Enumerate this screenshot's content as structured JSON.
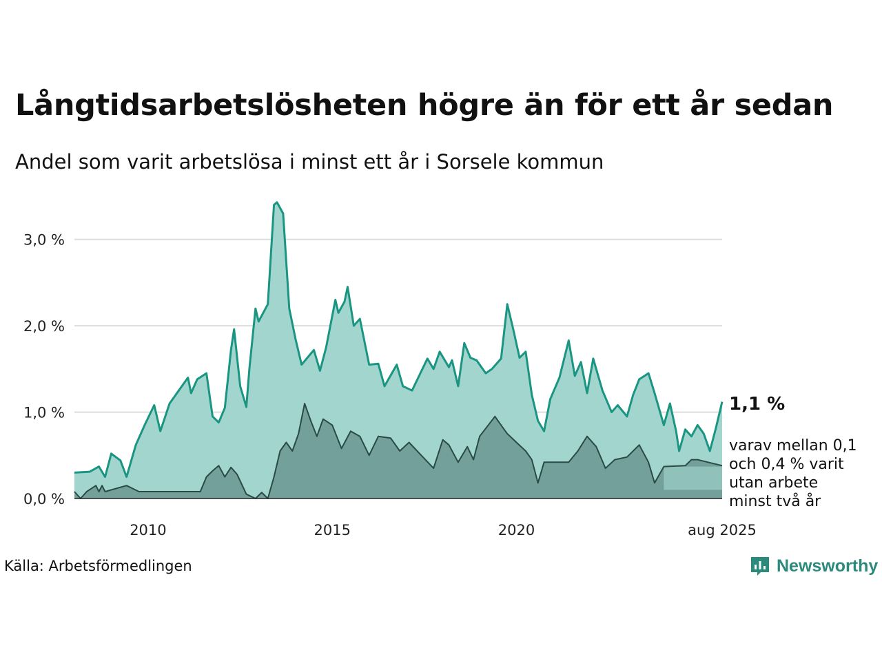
{
  "title": "Långtidsarbetslösheten högre än för ett år sedan",
  "subtitle": "Andel som varit arbetslösa i minst ett år i Sorsele kommun",
  "source": "Källa: Arbetsförmedlingen",
  "brand": "Newsworthy",
  "colors": {
    "primary_line": "#199582",
    "primary_fill": "#a3d5cf",
    "secondary_line": "#2a4a46",
    "secondary_fill": "#73a09a",
    "band_fill": "#95c7c0",
    "grid": "#dddddd",
    "brand": "#2c8a7c"
  },
  "annotation": {
    "value": "1,1 %",
    "sub_lines": [
      "varav mellan 0,1",
      "och 0,4 % varit",
      "utan arbete",
      "minst två år"
    ]
  },
  "chart_data": {
    "type": "area",
    "x_unit": "month",
    "x_start": "2008-01",
    "x_end": "2025-08",
    "ylim": [
      0,
      3.5
    ],
    "y_ticks": [
      {
        "value": 0,
        "label": "0,0 %"
      },
      {
        "value": 1,
        "label": "1,0 %"
      },
      {
        "value": 2,
        "label": "2,0 %"
      },
      {
        "value": 3,
        "label": "3,0 %"
      }
    ],
    "x_ticks": [
      {
        "date": "2010-01",
        "label": "2010"
      },
      {
        "date": "2015-01",
        "label": "2015"
      },
      {
        "date": "2020-01",
        "label": "2020"
      },
      {
        "date": "2025-08",
        "label": "aug 2025"
      }
    ],
    "grid": true,
    "series": [
      {
        "role": "total",
        "points": [
          [
            "2008-01",
            0.3
          ],
          [
            "2008-06",
            0.31
          ],
          [
            "2008-09",
            0.37
          ],
          [
            "2008-11",
            0.25
          ],
          [
            "2009-01",
            0.52
          ],
          [
            "2009-04",
            0.44
          ],
          [
            "2009-06",
            0.25
          ],
          [
            "2009-09",
            0.62
          ],
          [
            "2009-12",
            0.86
          ],
          [
            "2010-03",
            1.08
          ],
          [
            "2010-05",
            0.78
          ],
          [
            "2010-08",
            1.1
          ],
          [
            "2010-12",
            1.3
          ],
          [
            "2011-02",
            1.4
          ],
          [
            "2011-03",
            1.22
          ],
          [
            "2011-05",
            1.38
          ],
          [
            "2011-08",
            1.45
          ],
          [
            "2011-10",
            0.95
          ],
          [
            "2011-12",
            0.88
          ],
          [
            "2012-02",
            1.05
          ],
          [
            "2012-04",
            1.72
          ],
          [
            "2012-05",
            1.96
          ],
          [
            "2012-07",
            1.3
          ],
          [
            "2012-09",
            1.06
          ],
          [
            "2012-10",
            1.5
          ],
          [
            "2012-12",
            2.2
          ],
          [
            "2013-01",
            2.05
          ],
          [
            "2013-04",
            2.25
          ],
          [
            "2013-06",
            3.4
          ],
          [
            "2013-07",
            3.43
          ],
          [
            "2013-09",
            3.3
          ],
          [
            "2013-11",
            2.2
          ],
          [
            "2014-01",
            1.85
          ],
          [
            "2014-03",
            1.55
          ],
          [
            "2014-07",
            1.72
          ],
          [
            "2014-09",
            1.48
          ],
          [
            "2014-11",
            1.75
          ],
          [
            "2015-02",
            2.3
          ],
          [
            "2015-03",
            2.15
          ],
          [
            "2015-05",
            2.28
          ],
          [
            "2015-06",
            2.45
          ],
          [
            "2015-08",
            2.0
          ],
          [
            "2015-10",
            2.08
          ],
          [
            "2016-01",
            1.55
          ],
          [
            "2016-04",
            1.56
          ],
          [
            "2016-06",
            1.3
          ],
          [
            "2016-10",
            1.55
          ],
          [
            "2016-12",
            1.3
          ],
          [
            "2017-03",
            1.25
          ],
          [
            "2017-05",
            1.4
          ],
          [
            "2017-08",
            1.62
          ],
          [
            "2017-10",
            1.5
          ],
          [
            "2017-12",
            1.7
          ],
          [
            "2018-03",
            1.52
          ],
          [
            "2018-04",
            1.6
          ],
          [
            "2018-06",
            1.3
          ],
          [
            "2018-08",
            1.8
          ],
          [
            "2018-10",
            1.63
          ],
          [
            "2018-12",
            1.6
          ],
          [
            "2019-03",
            1.45
          ],
          [
            "2019-05",
            1.5
          ],
          [
            "2019-08",
            1.62
          ],
          [
            "2019-10",
            2.25
          ],
          [
            "2019-12",
            1.95
          ],
          [
            "2020-02",
            1.63
          ],
          [
            "2020-04",
            1.7
          ],
          [
            "2020-06",
            1.2
          ],
          [
            "2020-08",
            0.9
          ],
          [
            "2020-10",
            0.78
          ],
          [
            "2020-12",
            1.15
          ],
          [
            "2021-03",
            1.4
          ],
          [
            "2021-06",
            1.83
          ],
          [
            "2021-08",
            1.42
          ],
          [
            "2021-10",
            1.58
          ],
          [
            "2021-12",
            1.22
          ],
          [
            "2022-02",
            1.62
          ],
          [
            "2022-05",
            1.25
          ],
          [
            "2022-08",
            1.0
          ],
          [
            "2022-10",
            1.08
          ],
          [
            "2023-01",
            0.95
          ],
          [
            "2023-03",
            1.2
          ],
          [
            "2023-05",
            1.38
          ],
          [
            "2023-08",
            1.45
          ],
          [
            "2023-10",
            1.22
          ],
          [
            "2024-01",
            0.85
          ],
          [
            "2024-03",
            1.1
          ],
          [
            "2024-05",
            0.78
          ],
          [
            "2024-06",
            0.55
          ],
          [
            "2024-08",
            0.8
          ],
          [
            "2024-10",
            0.72
          ],
          [
            "2024-12",
            0.85
          ],
          [
            "2025-02",
            0.75
          ],
          [
            "2025-04",
            0.55
          ],
          [
            "2025-06",
            0.82
          ],
          [
            "2025-08",
            1.12
          ]
        ]
      },
      {
        "role": "minst_tva_ar",
        "points": [
          [
            "2008-01",
            0.08
          ],
          [
            "2008-03",
            0.0
          ],
          [
            "2008-05",
            0.08
          ],
          [
            "2008-08",
            0.15
          ],
          [
            "2008-09",
            0.08
          ],
          [
            "2008-10",
            0.15
          ],
          [
            "2008-11",
            0.08
          ],
          [
            "2009-06",
            0.15
          ],
          [
            "2009-10",
            0.08
          ],
          [
            "2011-06",
            0.08
          ],
          [
            "2011-08",
            0.25
          ],
          [
            "2011-10",
            0.32
          ],
          [
            "2011-12",
            0.38
          ],
          [
            "2012-02",
            0.25
          ],
          [
            "2012-04",
            0.36
          ],
          [
            "2012-06",
            0.28
          ],
          [
            "2012-09",
            0.05
          ],
          [
            "2012-12",
            0.0
          ],
          [
            "2013-02",
            0.07
          ],
          [
            "2013-04",
            0.0
          ],
          [
            "2013-06",
            0.25
          ],
          [
            "2013-08",
            0.55
          ],
          [
            "2013-10",
            0.65
          ],
          [
            "2013-12",
            0.55
          ],
          [
            "2014-02",
            0.75
          ],
          [
            "2014-04",
            1.1
          ],
          [
            "2014-06",
            0.9
          ],
          [
            "2014-08",
            0.72
          ],
          [
            "2014-10",
            0.92
          ],
          [
            "2015-01",
            0.85
          ],
          [
            "2015-04",
            0.58
          ],
          [
            "2015-07",
            0.78
          ],
          [
            "2015-10",
            0.72
          ],
          [
            "2016-01",
            0.5
          ],
          [
            "2016-04",
            0.72
          ],
          [
            "2016-08",
            0.7
          ],
          [
            "2016-11",
            0.55
          ],
          [
            "2017-02",
            0.65
          ],
          [
            "2017-06",
            0.5
          ],
          [
            "2017-10",
            0.35
          ],
          [
            "2018-01",
            0.68
          ],
          [
            "2018-03",
            0.62
          ],
          [
            "2018-06",
            0.42
          ],
          [
            "2018-09",
            0.6
          ],
          [
            "2018-11",
            0.45
          ],
          [
            "2019-01",
            0.72
          ],
          [
            "2019-06",
            0.95
          ],
          [
            "2019-08",
            0.85
          ],
          [
            "2019-10",
            0.75
          ],
          [
            "2020-01",
            0.65
          ],
          [
            "2020-04",
            0.55
          ],
          [
            "2020-06",
            0.45
          ],
          [
            "2020-08",
            0.18
          ],
          [
            "2020-10",
            0.42
          ],
          [
            "2021-06",
            0.42
          ],
          [
            "2021-09",
            0.55
          ],
          [
            "2021-12",
            0.72
          ],
          [
            "2022-03",
            0.6
          ],
          [
            "2022-06",
            0.35
          ],
          [
            "2022-09",
            0.45
          ],
          [
            "2023-01",
            0.48
          ],
          [
            "2023-05",
            0.62
          ],
          [
            "2023-08",
            0.42
          ],
          [
            "2023-10",
            0.18
          ],
          [
            "2024-01",
            0.37
          ],
          [
            "2024-08",
            0.38
          ],
          [
            "2024-10",
            0.45
          ],
          [
            "2024-12",
            0.45
          ],
          [
            "2025-08",
            0.38
          ]
        ]
      }
    ],
    "range_band": {
      "x_start": "2024-01",
      "x_end": "2025-08",
      "low": 0.1,
      "high": 0.37
    }
  }
}
